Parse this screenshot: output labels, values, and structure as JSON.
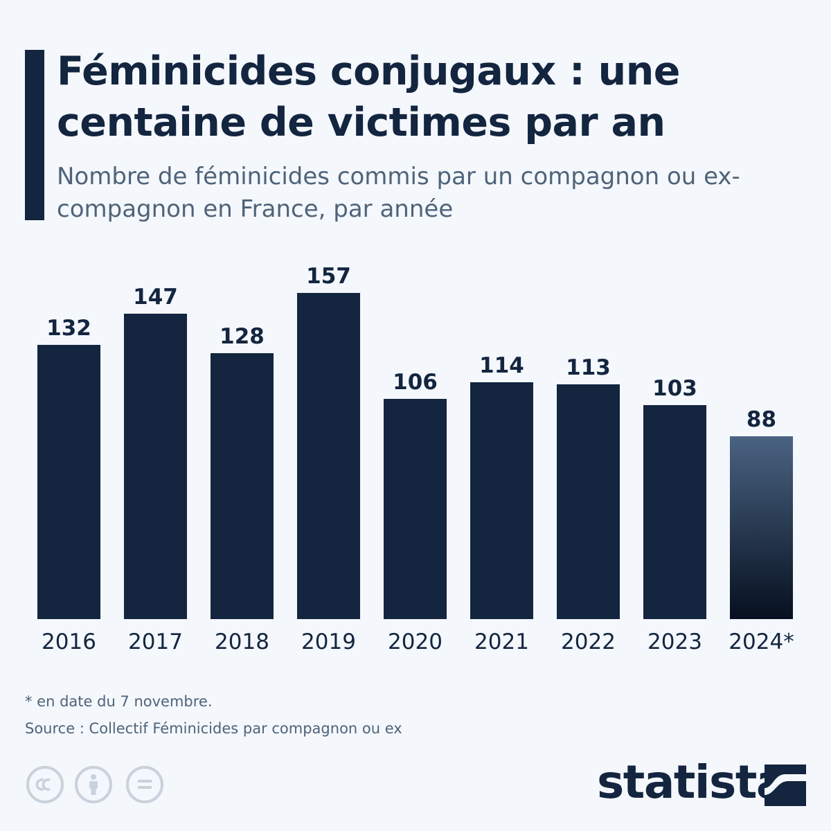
{
  "header": {
    "title": "Féminicides conjugaux : une centaine de victimes par an",
    "subtitle": "Nombre de féminicides commis par un compagnon ou ex-compagnon en France, par année"
  },
  "chart_data": {
    "type": "bar",
    "title": "Féminicides conjugaux : une centaine de victimes par an",
    "subtitle": "Nombre de féminicides commis par un compagnon ou ex-compagnon en France, par année",
    "categories": [
      "2016",
      "2017",
      "2018",
      "2019",
      "2020",
      "2021",
      "2022",
      "2023",
      "2024*"
    ],
    "values": [
      132,
      147,
      128,
      157,
      106,
      114,
      113,
      103,
      88
    ],
    "ylim": [
      0,
      157
    ],
    "grid": false,
    "legend": "none",
    "data_labels": true,
    "colors": {
      "bar": "#13253f",
      "highlight_top": "#4a6382",
      "highlight_bottom": "#06101f",
      "label": "#13253f",
      "tick": "#13253f"
    },
    "highlight_index": 8
  },
  "footer": {
    "note": "* en date du 7 novembre.",
    "source": "Source : Collectif Féminicides par compagnon ou ex",
    "brand": "statista",
    "license_icons": [
      "cc-icon",
      "attribution-icon",
      "no-derivatives-icon"
    ]
  }
}
